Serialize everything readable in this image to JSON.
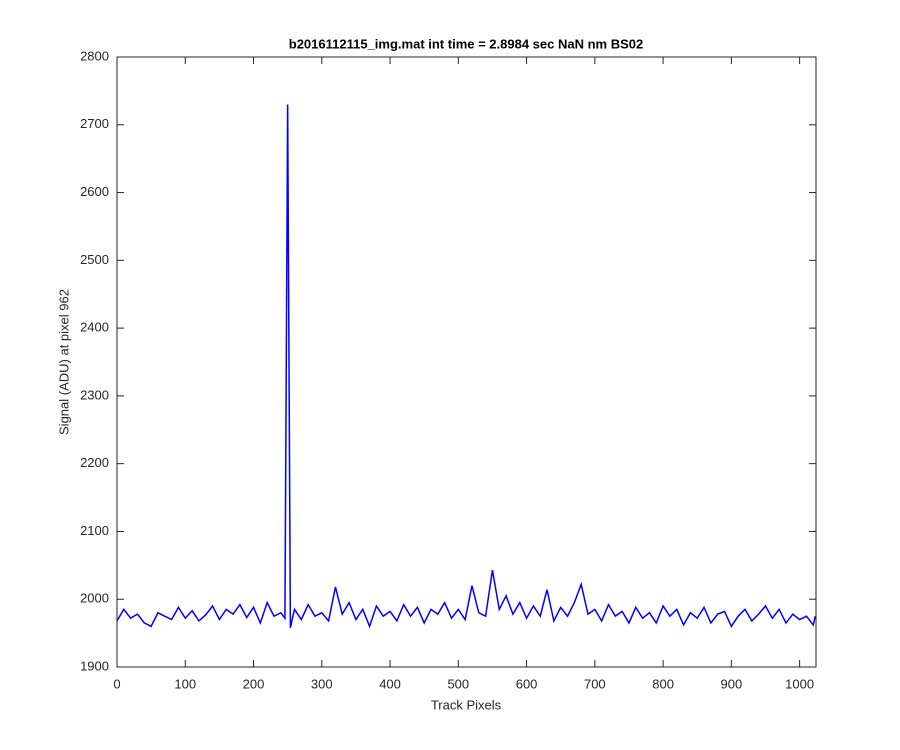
{
  "chart_data": {
    "type": "line",
    "title": "b2016112115_img.mat int time = 2.8984 sec  NaN nm BS02",
    "x_label": "Track Pixels",
    "y_label": "Signal (ADU) at pixel 962",
    "x": [
      0,
      10,
      20,
      30,
      40,
      50,
      60,
      70,
      80,
      90,
      100,
      110,
      120,
      130,
      140,
      150,
      160,
      170,
      180,
      190,
      200,
      210,
      220,
      230,
      240,
      246,
      250,
      254,
      260,
      270,
      280,
      290,
      300,
      310,
      320,
      330,
      340,
      350,
      360,
      370,
      380,
      390,
      400,
      410,
      420,
      430,
      440,
      450,
      460,
      470,
      480,
      490,
      500,
      510,
      520,
      530,
      540,
      550,
      560,
      570,
      580,
      590,
      600,
      610,
      620,
      630,
      640,
      650,
      660,
      670,
      680,
      690,
      700,
      710,
      720,
      730,
      740,
      750,
      760,
      770,
      780,
      790,
      800,
      810,
      820,
      830,
      840,
      850,
      860,
      870,
      880,
      890,
      900,
      910,
      920,
      930,
      940,
      950,
      960,
      970,
      980,
      990,
      1000,
      1010,
      1020,
      1023
    ],
    "series": [
      {
        "color": "#0000ff",
        "values": [
          1968,
          1985,
          1972,
          1978,
          1965,
          1960,
          1980,
          1975,
          1970,
          1988,
          1972,
          1983,
          1968,
          1977,
          1990,
          1970,
          1985,
          1978,
          1992,
          1973,
          1988,
          1965,
          1995,
          1975,
          1980,
          1972,
          2730,
          1958,
          1985,
          1970,
          1992,
          1975,
          1980,
          1968,
          2018,
          1978,
          1995,
          1970,
          1985,
          1960,
          1990,
          1975,
          1982,
          1968,
          1992,
          1975,
          1988,
          1965,
          1985,
          1978,
          1995,
          1972,
          1985,
          1970,
          2020,
          1980,
          1975,
          2043,
          1985,
          2005,
          1978,
          1995,
          1972,
          1990,
          1975,
          2014,
          1968,
          1988,
          1975,
          1995,
          2022,
          1978,
          1985,
          1968,
          1992,
          1975,
          1982,
          1965,
          1988,
          1972,
          1980,
          1965,
          1990,
          1975,
          1985,
          1962,
          1980,
          1972,
          1988,
          1965,
          1978,
          1982,
          1960,
          1975,
          1985,
          1968,
          1978,
          1990,
          1972,
          1985,
          1965,
          1978,
          1970,
          1975,
          1962,
          1975
        ]
      }
    ],
    "xlim": [
      0,
      1024
    ],
    "ylim": [
      1900,
      2800
    ],
    "xticks": [
      0,
      100,
      200,
      300,
      400,
      500,
      600,
      700,
      800,
      900,
      1000
    ],
    "yticks": [
      1900,
      2000,
      2100,
      2200,
      2300,
      2400,
      2500,
      2600,
      2700,
      2800
    ]
  }
}
